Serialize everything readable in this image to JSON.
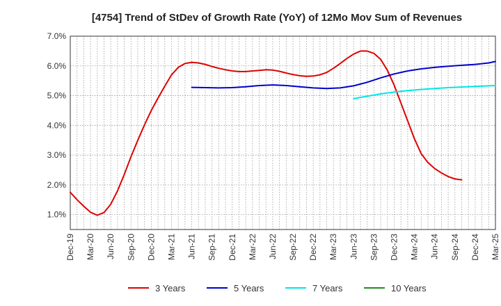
{
  "chart_data": {
    "type": "line",
    "title": "[4754]  Trend of StDev of Growth Rate (YoY) of 12Mo Mov Sum of Revenues",
    "xlabel": "",
    "ylabel": "",
    "x_tick_labels": [
      "Dec-19",
      "Mar-20",
      "Jun-20",
      "Sep-20",
      "Dec-20",
      "Mar-21",
      "Jun-21",
      "Sep-21",
      "Dec-21",
      "Mar-22",
      "Jun-22",
      "Sep-22",
      "Dec-22",
      "Mar-23",
      "Jun-23",
      "Sep-23",
      "Dec-23",
      "Mar-24",
      "Jun-24",
      "Sep-24",
      "Dec-24",
      "Mar-25"
    ],
    "y_tick_labels": [
      "1.0%",
      "2.0%",
      "3.0%",
      "4.0%",
      "5.0%",
      "6.0%",
      "7.0%"
    ],
    "ylim": [
      0.5,
      7.0
    ],
    "y_ticks": [
      1.0,
      2.0,
      3.0,
      4.0,
      5.0,
      6.0,
      7.0
    ],
    "x_month_range": [
      0,
      63
    ],
    "grid": true,
    "legend_position": "bottom",
    "series": [
      {
        "name": "3 Years",
        "color": "#dd0000",
        "points": [
          [
            0,
            1.75
          ],
          [
            1,
            1.5
          ],
          [
            2,
            1.28
          ],
          [
            3,
            1.08
          ],
          [
            4,
            0.98
          ],
          [
            5,
            1.07
          ],
          [
            6,
            1.35
          ],
          [
            7,
            1.8
          ],
          [
            8,
            2.35
          ],
          [
            9,
            2.95
          ],
          [
            10,
            3.5
          ],
          [
            11,
            4.02
          ],
          [
            12,
            4.5
          ],
          [
            13,
            4.92
          ],
          [
            14,
            5.32
          ],
          [
            15,
            5.7
          ],
          [
            16,
            5.95
          ],
          [
            17,
            6.08
          ],
          [
            18,
            6.12
          ],
          [
            19,
            6.1
          ],
          [
            20,
            6.05
          ],
          [
            21,
            5.98
          ],
          [
            22,
            5.92
          ],
          [
            23,
            5.87
          ],
          [
            24,
            5.83
          ],
          [
            25,
            5.81
          ],
          [
            26,
            5.81
          ],
          [
            27,
            5.83
          ],
          [
            28,
            5.85
          ],
          [
            29,
            5.87
          ],
          [
            30,
            5.86
          ],
          [
            31,
            5.82
          ],
          [
            32,
            5.76
          ],
          [
            33,
            5.71
          ],
          [
            34,
            5.67
          ],
          [
            35,
            5.65
          ],
          [
            36,
            5.66
          ],
          [
            37,
            5.7
          ],
          [
            38,
            5.78
          ],
          [
            39,
            5.92
          ],
          [
            40,
            6.08
          ],
          [
            41,
            6.25
          ],
          [
            42,
            6.4
          ],
          [
            43,
            6.5
          ],
          [
            44,
            6.5
          ],
          [
            45,
            6.42
          ],
          [
            46,
            6.22
          ],
          [
            47,
            5.85
          ],
          [
            48,
            5.35
          ],
          [
            49,
            4.75
          ],
          [
            50,
            4.15
          ],
          [
            51,
            3.55
          ],
          [
            52,
            3.05
          ],
          [
            53,
            2.75
          ],
          [
            54,
            2.55
          ],
          [
            55,
            2.4
          ],
          [
            56,
            2.28
          ],
          [
            57,
            2.2
          ],
          [
            58,
            2.17
          ]
        ]
      },
      {
        "name": "5 Years",
        "color": "#0000cc",
        "points": [
          [
            18,
            5.28
          ],
          [
            20,
            5.27
          ],
          [
            22,
            5.26
          ],
          [
            24,
            5.27
          ],
          [
            26,
            5.3
          ],
          [
            28,
            5.34
          ],
          [
            30,
            5.36
          ],
          [
            32,
            5.34
          ],
          [
            34,
            5.3
          ],
          [
            36,
            5.26
          ],
          [
            38,
            5.24
          ],
          [
            40,
            5.26
          ],
          [
            42,
            5.33
          ],
          [
            44,
            5.45
          ],
          [
            46,
            5.6
          ],
          [
            48,
            5.73
          ],
          [
            50,
            5.83
          ],
          [
            52,
            5.9
          ],
          [
            54,
            5.95
          ],
          [
            56,
            5.99
          ],
          [
            58,
            6.02
          ],
          [
            60,
            6.05
          ],
          [
            62,
            6.1
          ],
          [
            63,
            6.15
          ]
        ]
      },
      {
        "name": "7 Years",
        "color": "#00e5e5",
        "points": [
          [
            42,
            4.9
          ],
          [
            44,
            4.98
          ],
          [
            46,
            5.06
          ],
          [
            48,
            5.12
          ],
          [
            50,
            5.17
          ],
          [
            52,
            5.21
          ],
          [
            54,
            5.24
          ],
          [
            56,
            5.27
          ],
          [
            58,
            5.29
          ],
          [
            60,
            5.31
          ],
          [
            62,
            5.33
          ],
          [
            63,
            5.34
          ]
        ]
      },
      {
        "name": "10 Years",
        "color": "#228b22",
        "points": []
      }
    ]
  }
}
